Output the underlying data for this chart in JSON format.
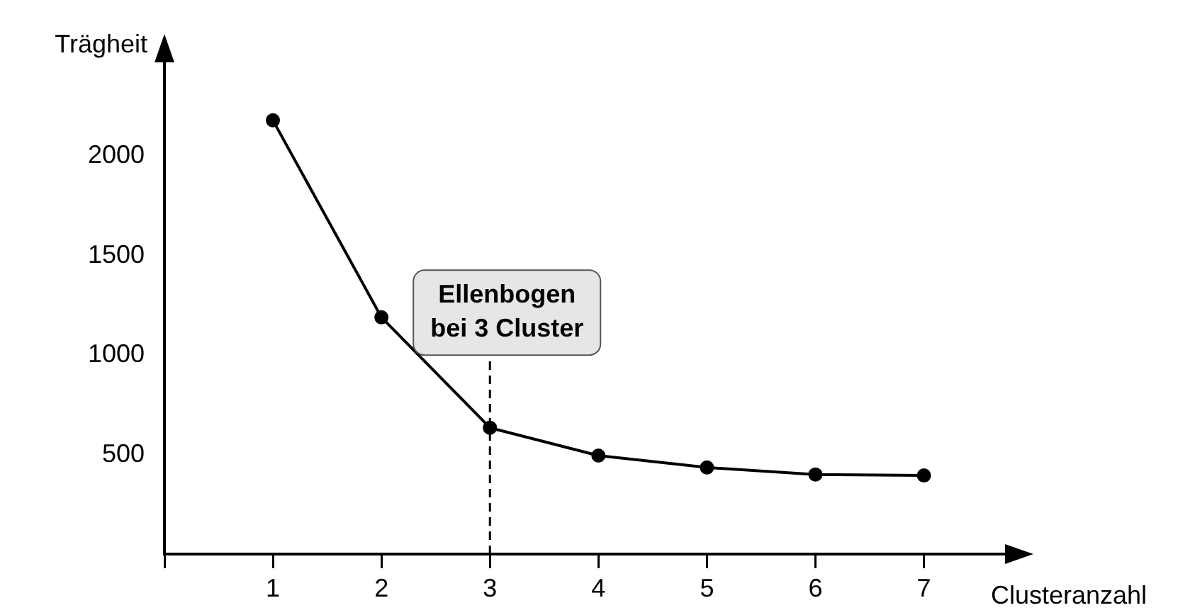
{
  "chart_data": {
    "type": "line",
    "xlabel": "Clusteranzahl",
    "ylabel": "Trägheit",
    "x": [
      1,
      2,
      3,
      4,
      5,
      6,
      7
    ],
    "series": [
      {
        "color": "#000000",
        "values": [
          2180,
          1190,
          635,
          495,
          435,
          400,
          395
        ]
      }
    ],
    "xlim": [
      0,
      7.8
    ],
    "xticks": [
      {
        "value": 0,
        "label": null
      },
      1,
      2,
      3,
      4,
      5,
      6,
      7
    ],
    "ylim": [
      0,
      2500
    ],
    "yticks": [
      500,
      1000,
      1500,
      2000
    ],
    "ref_lines": [
      {
        "axis": "x",
        "value": 3,
        "label": "Ellenbogen\nbei 3 Cluster",
        "line_style": "dashed",
        "color": "#000000"
      }
    ],
    "grid": false,
    "legend": false,
    "marker": "circle",
    "line_style": "solid"
  }
}
